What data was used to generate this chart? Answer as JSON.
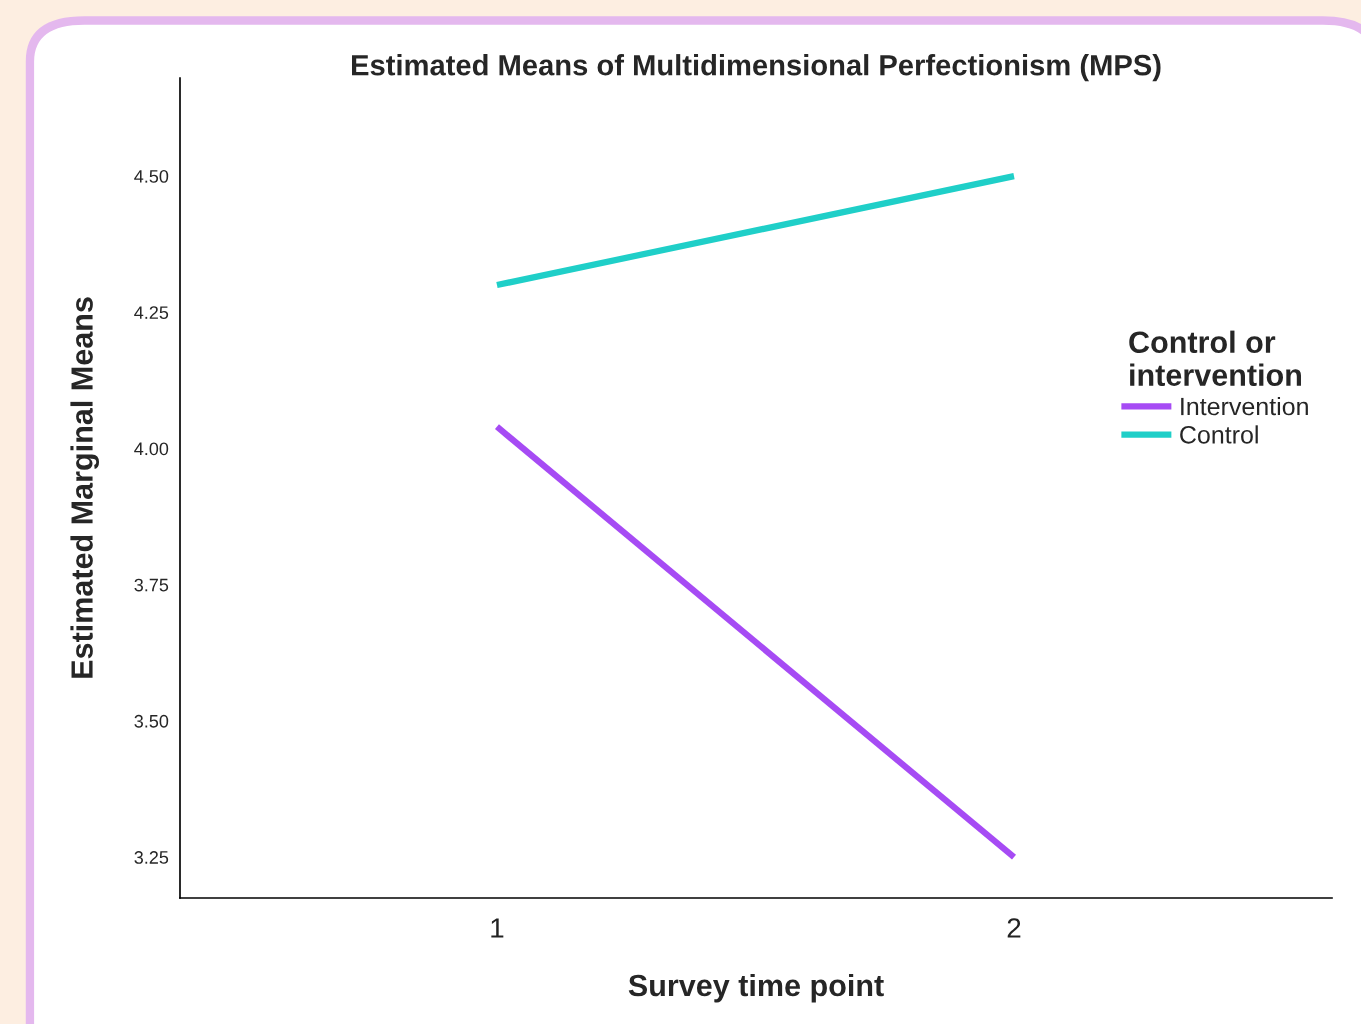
{
  "chart_data": {
    "type": "line",
    "title": "Estimated Means of Multidimensional Perfectionism (MPS)",
    "xlabel": "Survey time point",
    "ylabel": "Estimated Marginal Means",
    "legend_title": "Control or\nintervention",
    "legend": "right",
    "grid": false,
    "marker": "none",
    "line_style": "solid",
    "x": [
      1,
      2
    ],
    "xlim": [
      0.387,
      2.615
    ],
    "xticks": [
      1,
      2
    ],
    "series": [
      {
        "name": "Intervention",
        "color": "#a64bf4",
        "values": [
          4.04,
          3.25
        ]
      },
      {
        "name": "Control",
        "color": "#1fcfc8",
        "values": [
          4.3,
          4.5
        ]
      }
    ],
    "ylim": [
      3.175,
      4.68
    ],
    "yticks": [
      {
        "value": 3.25,
        "label": "3.25"
      },
      {
        "value": 3.5,
        "label": "3.50"
      },
      {
        "value": 3.75,
        "label": "3.75"
      },
      {
        "value": 4.0,
        "label": "4.00"
      },
      {
        "value": 4.25,
        "label": "4.25"
      },
      {
        "value": 4.5,
        "label": "4.50"
      }
    ]
  }
}
